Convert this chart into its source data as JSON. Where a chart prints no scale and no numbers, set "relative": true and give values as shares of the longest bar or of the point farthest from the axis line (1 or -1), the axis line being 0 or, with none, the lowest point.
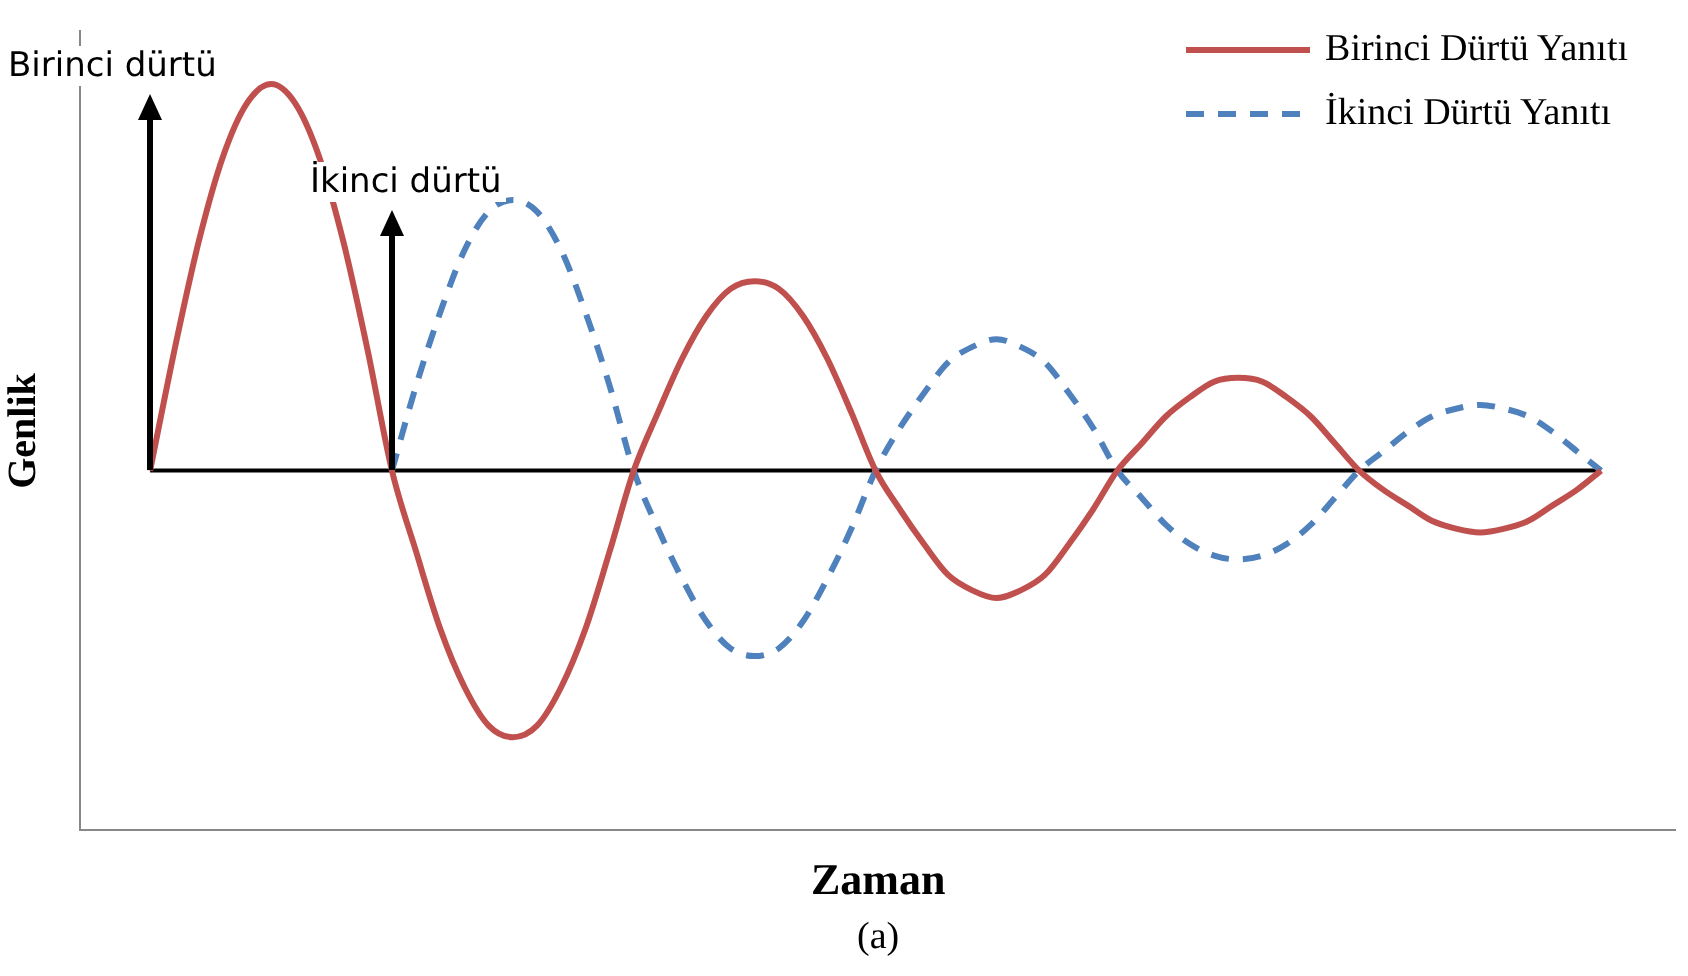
{
  "chart_data": {
    "type": "line",
    "relative": true,
    "xlabel": "Zaman",
    "ylabel": "Genlik",
    "legend": "top right",
    "marker": "none",
    "categories": [
      null,
      null,
      null,
      null,
      null,
      null,
      null,
      null,
      null,
      null,
      null,
      null,
      null,
      null,
      null,
      null,
      null,
      null,
      null,
      null,
      null,
      null,
      null,
      null,
      null,
      null,
      null,
      null,
      null,
      null,
      null,
      null,
      null,
      null,
      null,
      null,
      null,
      null,
      null,
      null,
      null,
      null,
      null,
      null,
      null,
      null,
      null,
      null,
      null,
      null,
      null,
      null,
      null,
      null,
      null,
      null,
      null,
      null,
      null,
      null,
      null
    ],
    "series": [
      {
        "name": "Birinci Dürtü Yanıtı",
        "color": "#c0504d",
        "line_style": "solid",
        "values": [
          0,
          0.31,
          0.59,
          0.81,
          0.95,
          1,
          0.95,
          0.81,
          0.59,
          0.31,
          0,
          -0.21,
          -0.41,
          -0.56,
          -0.66,
          -0.69,
          -0.66,
          -0.56,
          -0.41,
          -0.21,
          0,
          0.15,
          0.29,
          0.4,
          0.47,
          0.49,
          0.47,
          0.4,
          0.29,
          0.15,
          0,
          -0.1,
          -0.19,
          -0.27,
          -0.31,
          -0.33,
          -0.31,
          -0.27,
          -0.19,
          -0.1,
          0,
          0.07,
          0.14,
          0.19,
          0.23,
          0.24,
          0.23,
          0.19,
          0.14,
          0.07,
          0,
          -0.05,
          -0.09,
          -0.13,
          -0.15,
          -0.16,
          -0.15,
          -0.13,
          -0.09,
          -0.05,
          0
        ]
      },
      {
        "name": "İkinci Dürtü Yanıtı",
        "color": "#4f81bd",
        "line_style": "dashed",
        "values": [
          null,
          null,
          null,
          null,
          null,
          null,
          null,
          null,
          null,
          null,
          0,
          0.22,
          0.41,
          0.57,
          0.67,
          0.7,
          0.67,
          0.57,
          0.41,
          0.22,
          0,
          -0.15,
          -0.28,
          -0.39,
          -0.46,
          -0.48,
          -0.46,
          -0.39,
          -0.28,
          -0.15,
          0,
          0.11,
          0.2,
          0.28,
          0.32,
          0.34,
          0.32,
          0.28,
          0.2,
          0.11,
          0,
          -0.07,
          -0.14,
          -0.19,
          -0.22,
          -0.23,
          -0.22,
          -0.19,
          -0.14,
          -0.07,
          0,
          0.05,
          0.1,
          0.14,
          0.16,
          0.17,
          0.16,
          0.14,
          0.1,
          0.05,
          0
        ]
      }
    ],
    "annotations": [
      "Birinci dürtü",
      "İkinci dürtü",
      "(a)"
    ]
  }
}
